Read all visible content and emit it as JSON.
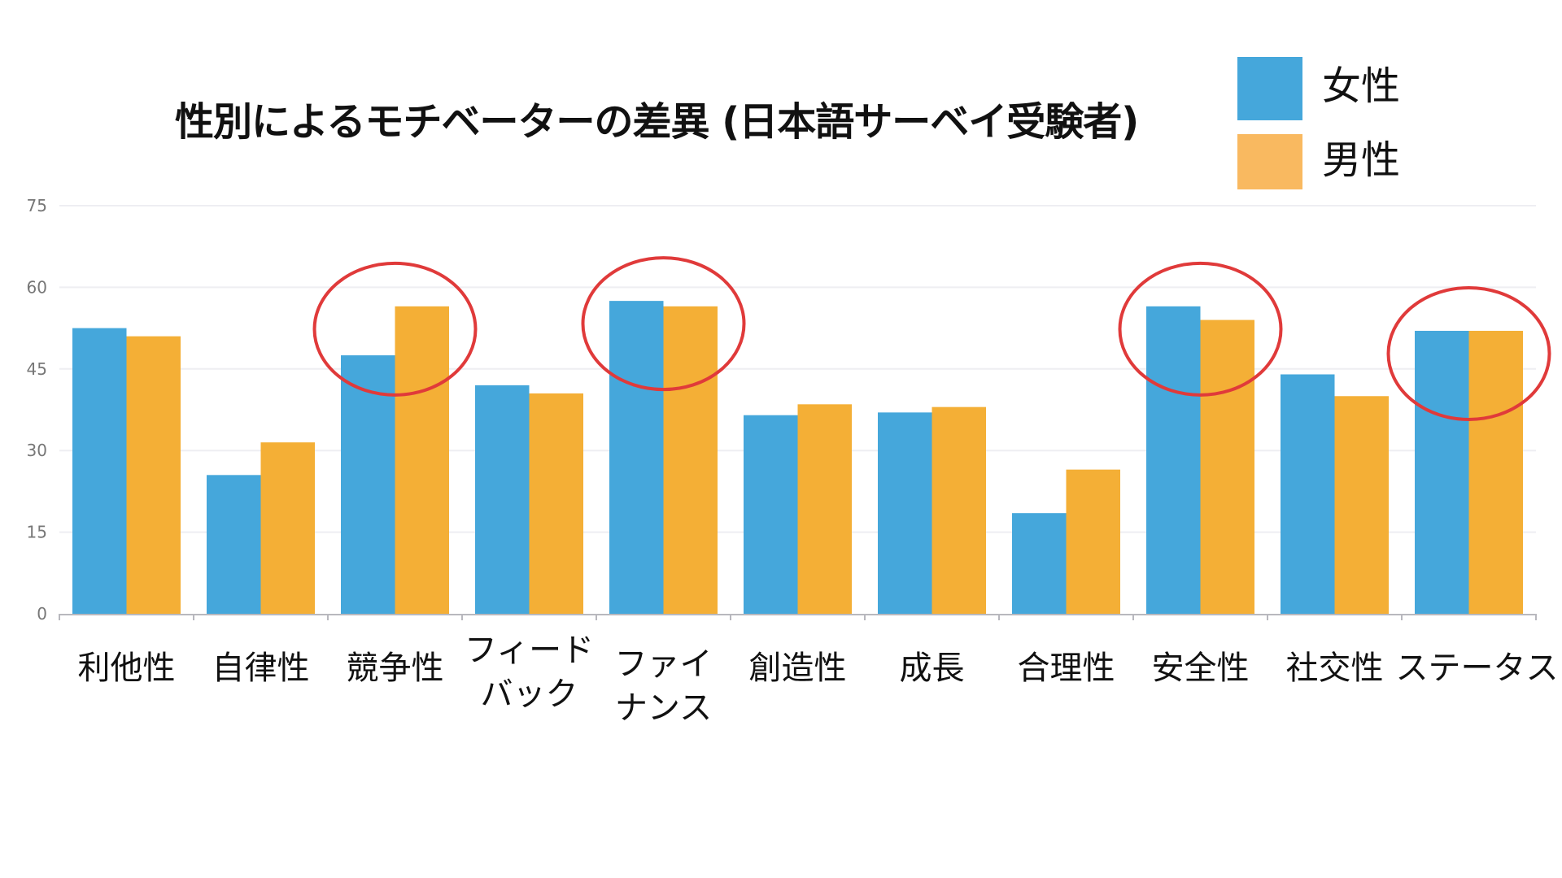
{
  "title": "性別によるモチベーターの差異 (日本語サーベイ受験者)",
  "legend": [
    {
      "label": "女性",
      "color": "#45A7DB"
    },
    {
      "label": "男性",
      "color": "#F9B960"
    }
  ],
  "highlight_color": "#E03A3A",
  "chart_data": {
    "type": "bar",
    "title": "性別によるモチベーターの差異 (日本語サーベイ受験者)",
    "xlabel": "",
    "ylabel": "",
    "ylim": [
      0,
      75
    ],
    "yticks": [
      0,
      15,
      30,
      45,
      60,
      75
    ],
    "grid": true,
    "legend_position": "top-right",
    "categories": [
      "利他性",
      "自律性",
      "競争性",
      "フィードバック",
      "ファイナンス",
      "創造性",
      "成長",
      "合理性",
      "安全性",
      "社交性",
      "ステータス"
    ],
    "category_labels_display": [
      "利他性",
      "自律性",
      "競争性",
      "フィード\nバック",
      "ファイ\nナンス",
      "創造性",
      "成長",
      "合理性",
      "安全性",
      "社交性",
      "ステータス"
    ],
    "series": [
      {
        "name": "女性",
        "color": "#45A7DB",
        "values": [
          52.5,
          25.5,
          47.5,
          42.0,
          57.5,
          36.5,
          37.0,
          18.5,
          56.5,
          44.0,
          52.0
        ]
      },
      {
        "name": "男性",
        "color": "#F4AF36",
        "values": [
          51.0,
          31.5,
          56.5,
          40.5,
          56.5,
          38.5,
          38.0,
          26.5,
          54.0,
          40.0,
          52.0
        ]
      }
    ],
    "annotations": [
      {
        "type": "circle",
        "category": "競争性"
      },
      {
        "type": "circle",
        "category": "ファイナンス"
      },
      {
        "type": "circle",
        "category": "安全性"
      },
      {
        "type": "circle",
        "category": "ステータス"
      }
    ]
  }
}
